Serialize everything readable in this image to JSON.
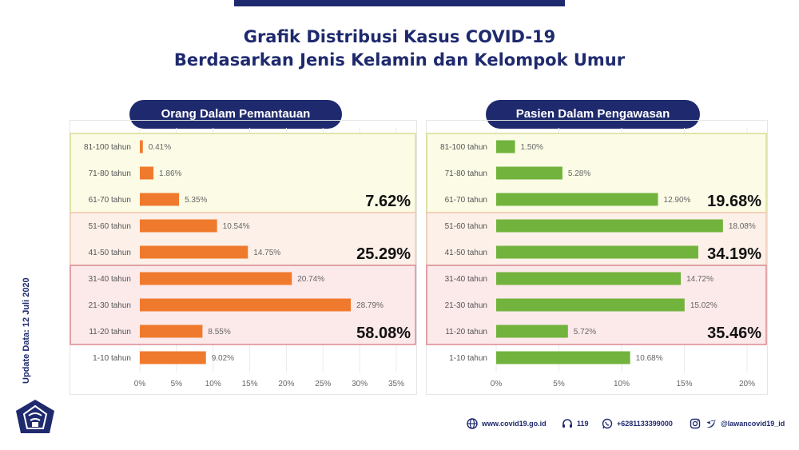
{
  "title_line1": "Grafik Distribusi Kasus COVID-19",
  "title_line2": "Berdasarkan Jenis Kelamin dan Kelompok Umur",
  "update_text": "Update Data: 12 Juli 2020",
  "colors": {
    "navy": "#1f2a6e",
    "odp": "#ef7a2e",
    "pdp": "#72b33d"
  },
  "footer": {
    "website": "www.covid19.go.id",
    "hotline": "119",
    "whatsapp": "+6281133399000",
    "social": "@lawancovid19_id"
  },
  "chart_data": [
    {
      "type": "bar",
      "orientation": "horizontal",
      "title": "Orang Dalam Pemantauan",
      "categories": [
        "81-100 tahun",
        "71-80 tahun",
        "61-70 tahun",
        "51-60 tahun",
        "41-50 tahun",
        "31-40 tahun",
        "21-30 tahun",
        "11-20 tahun",
        "1-10 tahun"
      ],
      "values": [
        0.41,
        1.86,
        5.35,
        10.54,
        14.75,
        20.74,
        28.79,
        8.55,
        9.02
      ],
      "value_labels": [
        "0.41%",
        "1.86%",
        "5.35%",
        "10.54%",
        "14.75%",
        "20.74%",
        "28.79%",
        "8.55%",
        "9.02%"
      ],
      "xlim": [
        0,
        35
      ],
      "xticks": [
        "0%",
        "5%",
        "10%",
        "15%",
        "20%",
        "25%",
        "30%",
        "35%"
      ],
      "groups": [
        {
          "label": "7.62%",
          "first": 0,
          "last": 2,
          "fill": "#fbfbe6",
          "stroke": "#d8dc93"
        },
        {
          "label": "25.29%",
          "first": 3,
          "last": 4,
          "fill": "#fcf0e8",
          "stroke": "#efc8b1"
        },
        {
          "label": "58.08%",
          "first": 5,
          "last": 7,
          "fill": "#fce9ea",
          "stroke": "#d98a92"
        }
      ]
    },
    {
      "type": "bar",
      "orientation": "horizontal",
      "title": "Pasien Dalam Pengawasan",
      "categories": [
        "81-100 tahun",
        "71-80 tahun",
        "61-70 tahun",
        "51-60 tahun",
        "41-50 tahun",
        "31-40 tahun",
        "21-30 tahun",
        "11-20 tahun",
        "1-10 tahun"
      ],
      "values": [
        1.5,
        5.28,
        12.9,
        18.08,
        16.11,
        14.72,
        15.02,
        5.72,
        10.68
      ],
      "value_labels": [
        "1.50%",
        "5.28%",
        "12.90%",
        "18.08%",
        "",
        "14.72%",
        "15.02%",
        "5.72%",
        "10.68%"
      ],
      "xlim": [
        0,
        20
      ],
      "xticks": [
        "0%",
        "5%",
        "10%",
        "15%",
        "20%"
      ],
      "groups": [
        {
          "label": "19.68%",
          "first": 0,
          "last": 2,
          "fill": "#fbfbe6",
          "stroke": "#d8dc93"
        },
        {
          "label": "34.19%",
          "first": 3,
          "last": 4,
          "fill": "#fcf0e8",
          "stroke": "#efc8b1"
        },
        {
          "label": "35.46%",
          "first": 5,
          "last": 7,
          "fill": "#fce9ea",
          "stroke": "#d98a92"
        }
      ]
    }
  ]
}
